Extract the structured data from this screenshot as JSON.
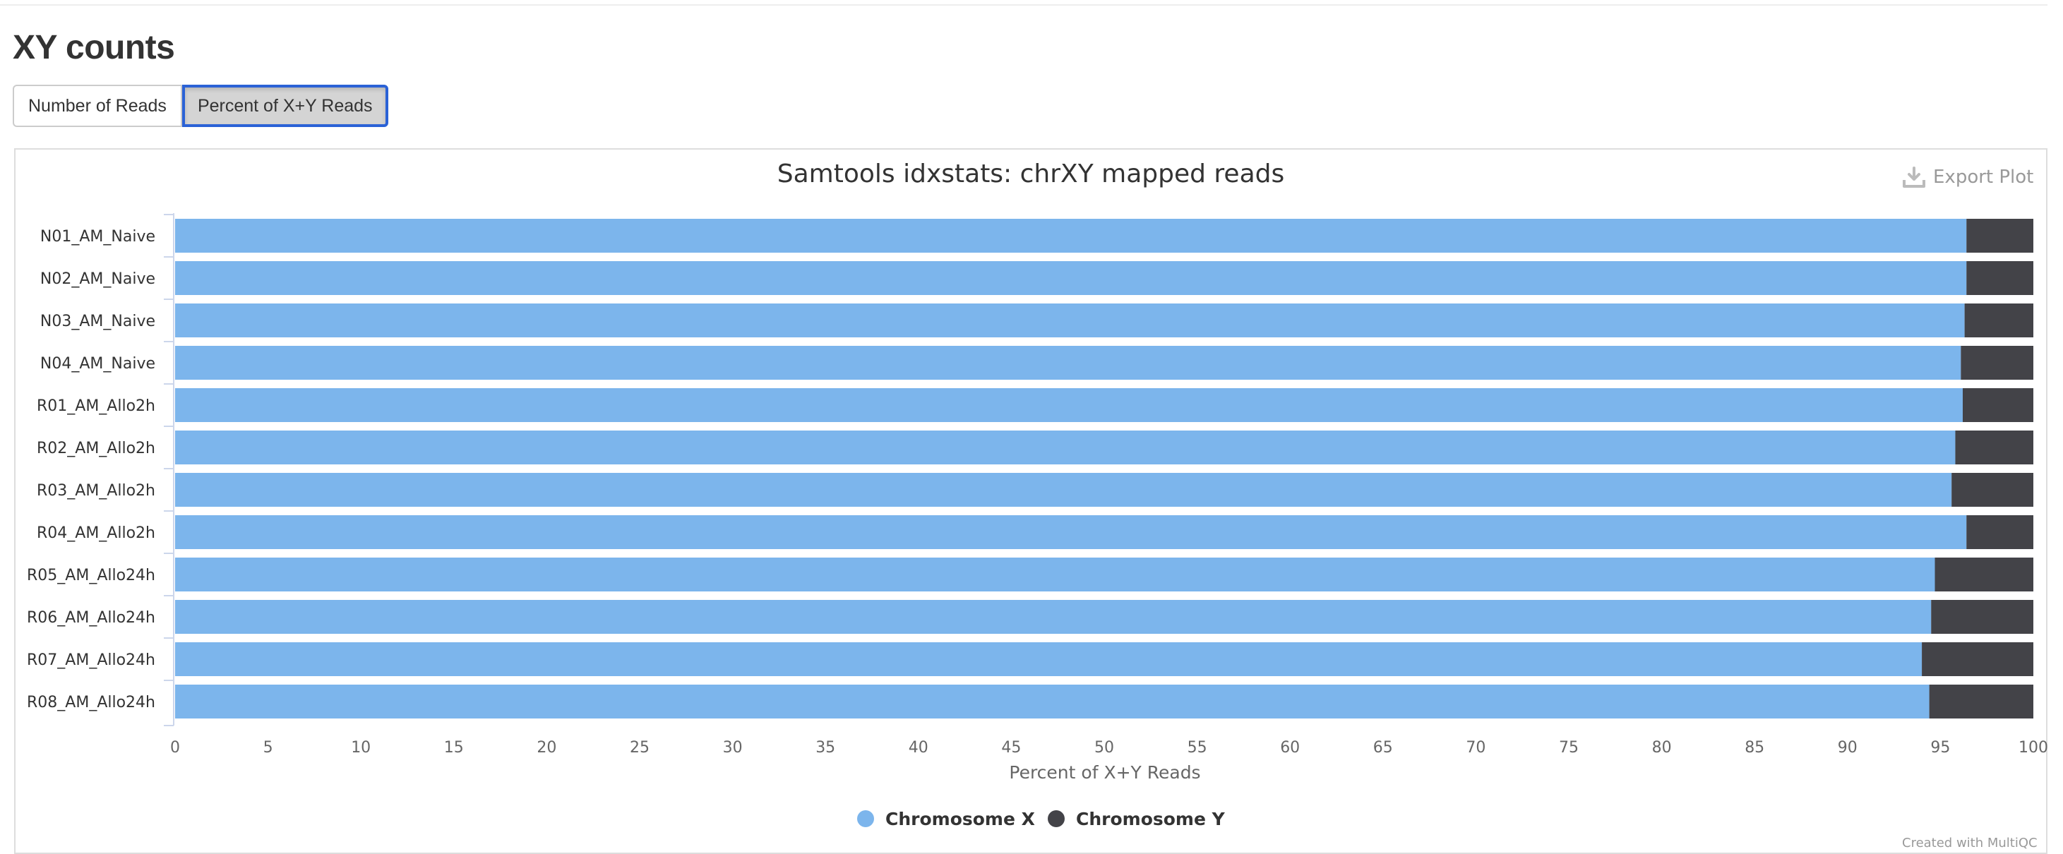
{
  "section": {
    "title": "XY counts"
  },
  "toggles": [
    {
      "label": "Number of Reads",
      "active": false
    },
    {
      "label": "Percent of X+Y Reads",
      "active": true
    }
  ],
  "export": {
    "label": "Export Plot",
    "icon": "download-icon"
  },
  "credit": "Created with MultiQC",
  "chart_data": {
    "type": "bar",
    "orientation": "horizontal",
    "stacked": true,
    "title": "Samtools idxstats: chrXY mapped reads",
    "xlabel": "Percent of X+Y Reads",
    "ylabel": "",
    "xlim": [
      0,
      100
    ],
    "xticks": [
      "0",
      "5",
      "10",
      "15",
      "20",
      "25",
      "30",
      "35",
      "40",
      "45",
      "50",
      "55",
      "60",
      "65",
      "70",
      "75",
      "80",
      "85",
      "90",
      "95",
      "100"
    ],
    "categories": [
      "N01_AM_Naive",
      "N02_AM_Naive",
      "N03_AM_Naive",
      "N04_AM_Naive",
      "R01_AM_Allo2h",
      "R02_AM_Allo2h",
      "R03_AM_Allo2h",
      "R04_AM_Allo2h",
      "R05_AM_Allo24h",
      "R06_AM_Allo24h",
      "R07_AM_Allo24h",
      "R08_AM_Allo24h"
    ],
    "series": [
      {
        "name": "Chromosome X",
        "color": "#7cb5ec",
        "values": [
          96.4,
          96.4,
          96.3,
          96.1,
          96.2,
          95.8,
          95.6,
          96.4,
          94.7,
          94.5,
          94.0,
          94.4
        ]
      },
      {
        "name": "Chromosome Y",
        "color": "#434348",
        "values": [
          3.6,
          3.6,
          3.7,
          3.9,
          3.8,
          4.2,
          4.4,
          3.6,
          5.3,
          5.5,
          6.0,
          5.6
        ]
      }
    ],
    "legend": "bottom-center",
    "grid": false
  }
}
